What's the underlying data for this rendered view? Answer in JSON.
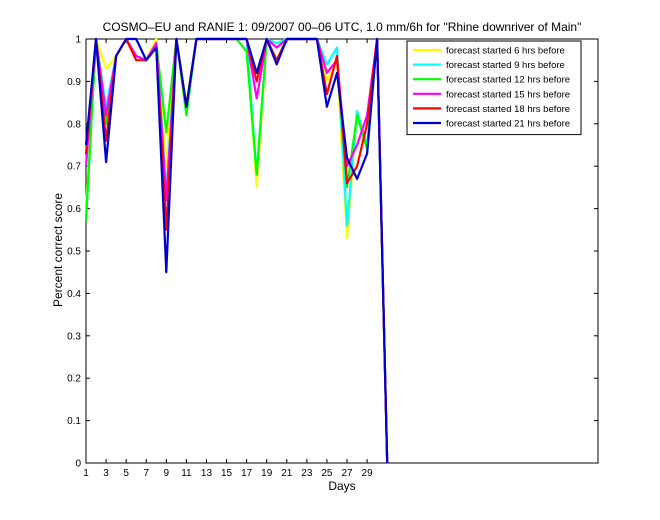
{
  "chart_data": {
    "type": "line",
    "title": "COSMO–EU and RANIE 1: 09/2007 00–06 UTC, 1.0 mm/6h for \"Rhine downriver of Main\"",
    "xlabel": "Days",
    "ylabel": "Percent correct score",
    "xlim": [
      1,
      52
    ],
    "ylim": [
      0,
      1
    ],
    "xticks": [
      1,
      3,
      5,
      7,
      9,
      11,
      13,
      15,
      17,
      19,
      21,
      23,
      25,
      27,
      29
    ],
    "yticks": [
      0,
      0.1,
      0.2,
      0.3,
      0.4,
      0.5,
      0.6,
      0.7,
      0.8,
      0.9,
      1
    ],
    "ytick_labels": [
      "0",
      "0.1",
      "0.2",
      "0.3",
      "0.4",
      "0.5",
      "0.6",
      "0.7",
      "0.8",
      "0.9",
      "1"
    ],
    "grid": false,
    "legend_position": "top-right",
    "x": [
      1,
      2,
      3,
      4,
      5,
      6,
      7,
      8,
      9,
      10,
      11,
      12,
      13,
      14,
      15,
      16,
      17,
      18,
      19,
      20,
      21,
      22,
      23,
      24,
      25,
      26,
      27,
      28,
      29,
      30,
      31
    ],
    "series": [
      {
        "name": "forecast started 6 hrs before",
        "color": "#ffff00",
        "values": [
          0.6,
          1.0,
          0.93,
          0.96,
          1.0,
          1.0,
          0.95,
          1.0,
          0.7,
          1.0,
          0.85,
          1.0,
          1.0,
          1.0,
          1.0,
          1.0,
          1.0,
          0.65,
          1.0,
          0.99,
          1.0,
          1.0,
          1.0,
          1.0,
          0.9,
          0.95,
          0.53,
          0.83,
          0.75,
          1.0,
          0.0
        ]
      },
      {
        "name": "forecast started 9 hrs before",
        "color": "#00ffff",
        "values": [
          0.58,
          1.0,
          0.84,
          0.96,
          1.0,
          1.0,
          0.95,
          0.99,
          0.64,
          1.0,
          0.84,
          1.0,
          1.0,
          1.0,
          1.0,
          1.0,
          1.0,
          0.68,
          1.0,
          0.99,
          1.0,
          1.0,
          1.0,
          1.0,
          0.94,
          0.98,
          0.56,
          0.83,
          0.75,
          1.0,
          0.0
        ]
      },
      {
        "name": "forecast started 12 hrs before",
        "color": "#00ff00",
        "values": [
          0.57,
          1.0,
          0.8,
          0.96,
          1.0,
          0.96,
          0.95,
          0.99,
          0.78,
          1.0,
          0.82,
          1.0,
          1.0,
          1.0,
          1.0,
          1.0,
          0.97,
          0.68,
          1.0,
          0.95,
          1.0,
          1.0,
          1.0,
          1.0,
          0.92,
          0.95,
          0.65,
          0.82,
          0.74,
          1.0,
          0.0
        ]
      },
      {
        "name": "forecast started 15 hrs before",
        "color": "#ff00ff",
        "values": [
          0.7,
          1.0,
          0.82,
          0.96,
          1.0,
          0.96,
          0.95,
          0.99,
          0.62,
          1.0,
          0.84,
          1.0,
          1.0,
          1.0,
          1.0,
          1.0,
          1.0,
          0.86,
          1.0,
          0.98,
          1.0,
          1.0,
          1.0,
          1.0,
          0.92,
          0.95,
          0.7,
          0.75,
          0.82,
          1.0,
          0.0
        ]
      },
      {
        "name": "forecast started 18 hrs before",
        "color": "#ff0000",
        "values": [
          0.73,
          1.0,
          0.76,
          0.96,
          1.0,
          0.95,
          0.95,
          0.98,
          0.55,
          1.0,
          0.84,
          1.0,
          1.0,
          1.0,
          1.0,
          1.0,
          1.0,
          0.9,
          1.0,
          0.95,
          1.0,
          1.0,
          1.0,
          1.0,
          0.87,
          0.96,
          0.66,
          0.7,
          0.8,
          1.0,
          0.0
        ]
      },
      {
        "name": "forecast started 21 hrs before",
        "color": "#0000cc",
        "values": [
          0.75,
          1.0,
          0.71,
          0.96,
          1.0,
          1.0,
          0.95,
          0.98,
          0.45,
          1.0,
          0.84,
          1.0,
          1.0,
          1.0,
          1.0,
          1.0,
          1.0,
          0.92,
          1.0,
          0.94,
          1.0,
          1.0,
          1.0,
          1.0,
          0.84,
          0.92,
          0.72,
          0.67,
          0.73,
          1.0,
          0.0
        ]
      }
    ]
  }
}
